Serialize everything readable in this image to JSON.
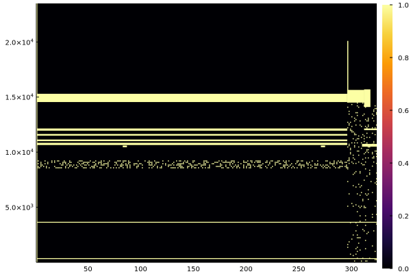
{
  "chart_data": {
    "type": "heatmap",
    "title": "",
    "xlabel": "",
    "ylabel": "",
    "xlim": [
      1,
      324
    ],
    "ylim": [
      1,
      23500
    ],
    "x_ticks": [
      {
        "value": 50,
        "label": "50"
      },
      {
        "value": 100,
        "label": "100"
      },
      {
        "value": 150,
        "label": "150"
      },
      {
        "value": 200,
        "label": "200"
      },
      {
        "value": 250,
        "label": "250"
      },
      {
        "value": 300,
        "label": "300"
      }
    ],
    "y_ticks": [
      {
        "value": 5000,
        "base": "5.0×10",
        "exp": "3"
      },
      {
        "value": 10000,
        "base": "1.0×10",
        "exp": "4"
      },
      {
        "value": 15000,
        "base": "1.5×10",
        "exp": "4"
      },
      {
        "value": 20000,
        "base": "2.0×10",
        "exp": "4"
      }
    ],
    "colorbar": {
      "range": [
        0,
        1
      ],
      "ticks": [
        {
          "value": 0.0,
          "label": "0.0"
        },
        {
          "value": 0.2,
          "label": "0.2"
        },
        {
          "value": 0.4,
          "label": "0.4"
        },
        {
          "value": 0.6,
          "label": "0.6"
        },
        {
          "value": 0.8,
          "label": "0.8"
        },
        {
          "value": 1.0,
          "label": "1.0"
        }
      ],
      "colors": [
        "#000004",
        "#1b0c41",
        "#4a0c6b",
        "#781c6d",
        "#a52c60",
        "#cf4446",
        "#ed6925",
        "#fb9b06",
        "#f7d13d",
        "#fcffa4"
      ]
    },
    "background_value": 0,
    "band_value": 1,
    "bands": [
      {
        "x0": 1,
        "x1": 296,
        "y0": 14550,
        "y1": 15300
      },
      {
        "x0": 296,
        "x1": 312,
        "y0": 14500,
        "y1": 15650
      },
      {
        "x0": 312,
        "x1": 318,
        "y0": 14100,
        "y1": 15700
      },
      {
        "x0": 1,
        "x1": 296,
        "y0": 11950,
        "y1": 12150
      },
      {
        "x0": 1,
        "x1": 296,
        "y0": 11500,
        "y1": 11650
      },
      {
        "x0": 1,
        "x1": 296,
        "y0": 11000,
        "y1": 11150
      },
      {
        "x0": 1,
        "x1": 296,
        "y0": 10650,
        "y1": 10850
      },
      {
        "x0": 310,
        "x1": 324,
        "y0": 10500,
        "y1": 10750
      },
      {
        "x0": 312,
        "x1": 324,
        "y0": 12000,
        "y1": 12150
      },
      {
        "x0": 1,
        "x1": 324,
        "y0": 3600,
        "y1": 3680
      },
      {
        "x0": 1,
        "x1": 324,
        "y0": 300,
        "y1": 380
      },
      {
        "x0": 296,
        "x1": 297,
        "y0": 14500,
        "y1": 20100
      },
      {
        "x0": 83,
        "x1": 87,
        "y0": 10450,
        "y1": 10600
      },
      {
        "x0": 271,
        "x1": 275,
        "y0": 10450,
        "y1": 10600
      },
      {
        "x0": 1,
        "x1": 2,
        "y0": 1,
        "y1": 23500
      }
    ],
    "speckle_regions": [
      {
        "x0": 1,
        "x1": 296,
        "y0": 8600,
        "y1": 9250,
        "density": 0.35
      },
      {
        "x0": 296,
        "x1": 324,
        "y0": 8000,
        "y1": 14500,
        "density": 0.12
      },
      {
        "x0": 296,
        "x1": 324,
        "y0": 1,
        "y1": 8000,
        "density": 0.06
      }
    ]
  }
}
